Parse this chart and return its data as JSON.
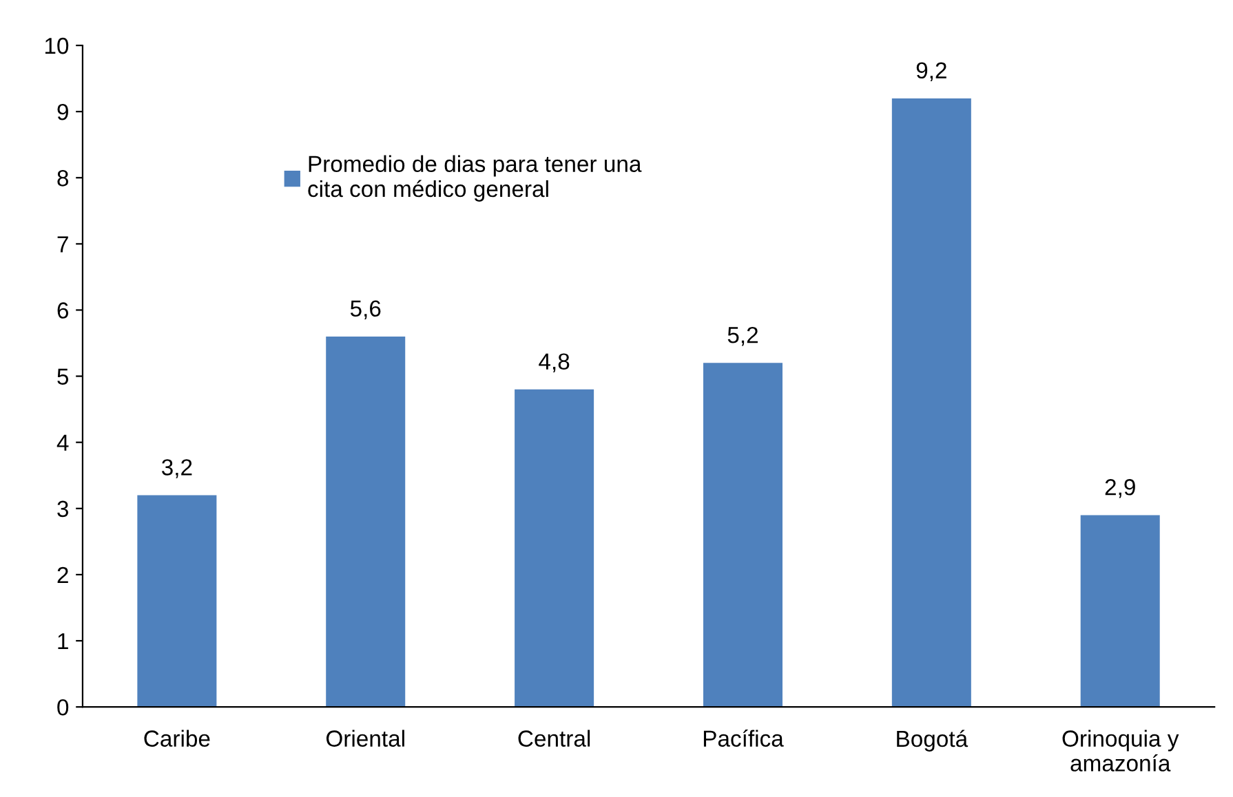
{
  "chart_data": {
    "type": "bar",
    "categories": [
      "Caribe",
      "Oriental",
      "Central",
      "Pacífica",
      "Bogotá",
      "Orinoquia y\namazonía"
    ],
    "series": [
      {
        "name": "Promedio de dias para tener una\ncita con médico general",
        "color": "#4f81bd",
        "values": [
          3.2,
          5.6,
          4.8,
          5.2,
          9.2,
          2.9
        ],
        "value_labels": [
          "3,2",
          "5,6",
          "4,8",
          "5,2",
          "9,2",
          "2,9"
        ]
      }
    ],
    "ylim": [
      0,
      10
    ],
    "yticks": [
      0,
      1,
      2,
      3,
      4,
      5,
      6,
      7,
      8,
      9,
      10
    ],
    "grid": false,
    "legend": "top left"
  }
}
